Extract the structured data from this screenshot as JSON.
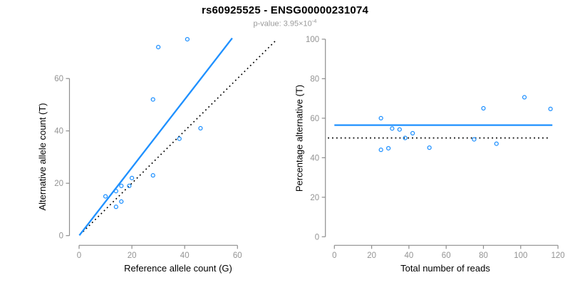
{
  "header": {
    "title": "rs60925525 - ENSG00000231074",
    "subtitle_prefix": "p-value: 3.95×10",
    "subtitle_exponent": "-4"
  },
  "colors": {
    "accent_blue": "#1E90FF",
    "axis_gray": "#8e8e8e",
    "tick_label_gray": "#939393",
    "axis_title_black": "#000000",
    "dotted_black": "#000000"
  },
  "chart_data": [
    {
      "type": "scatter",
      "panel": "left",
      "xlabel": "Reference allele count (G)",
      "ylabel": "Alternative allele count (T)",
      "x_ticks": [
        0,
        20,
        40,
        60
      ],
      "y_ticks": [
        0,
        20,
        40,
        60
      ],
      "xlim": [
        0,
        60
      ],
      "ylim": [
        0,
        60
      ],
      "grid": false,
      "points": [
        {
          "x": 10,
          "y": 15
        },
        {
          "x": 14,
          "y": 11
        },
        {
          "x": 16,
          "y": 13
        },
        {
          "x": 14,
          "y": 17
        },
        {
          "x": 16,
          "y": 19
        },
        {
          "x": 19,
          "y": 19
        },
        {
          "x": 20,
          "y": 22
        },
        {
          "x": 28,
          "y": 23
        },
        {
          "x": 38,
          "y": 37
        },
        {
          "x": 28,
          "y": 52
        },
        {
          "x": 46,
          "y": 41
        },
        {
          "x": 30,
          "y": 72
        },
        {
          "x": 41,
          "y": 75
        }
      ],
      "lines": [
        {
          "name": "identity-line",
          "style": "dotted",
          "color": "#000000",
          "from": [
            1.5,
            1.5
          ],
          "to": [
            74.3,
            74.3
          ]
        },
        {
          "name": "fit-line",
          "style": "solid",
          "color": "#1E90FF",
          "slope": 1.3,
          "from": [
            0.1,
            0.1
          ],
          "to": [
            58,
            75.4
          ]
        }
      ]
    },
    {
      "type": "scatter",
      "panel": "right",
      "xlabel": "Total number of reads",
      "ylabel": "Percentage alternative (T)",
      "x_ticks": [
        0,
        20,
        40,
        60,
        80,
        100,
        120
      ],
      "y_ticks": [
        0,
        20,
        40,
        60,
        80,
        100
      ],
      "xlim": [
        0,
        120
      ],
      "ylim": [
        0,
        100
      ],
      "grid": false,
      "points": [
        {
          "x": 25,
          "y": 60.0
        },
        {
          "x": 25,
          "y": 44.0
        },
        {
          "x": 29,
          "y": 44.8
        },
        {
          "x": 31,
          "y": 54.8
        },
        {
          "x": 35,
          "y": 54.3
        },
        {
          "x": 38,
          "y": 50.0
        },
        {
          "x": 42,
          "y": 52.4
        },
        {
          "x": 51,
          "y": 45.1
        },
        {
          "x": 75,
          "y": 49.3
        },
        {
          "x": 80,
          "y": 65.0
        },
        {
          "x": 87,
          "y": 47.1
        },
        {
          "x": 102,
          "y": 70.6
        },
        {
          "x": 116,
          "y": 64.7
        }
      ],
      "lines": [
        {
          "name": "fifty-percent-line",
          "style": "dotted",
          "color": "#000000",
          "from": [
            -3.5,
            50
          ],
          "to": [
            115,
            50
          ]
        },
        {
          "name": "mean-percentage-line",
          "style": "solid",
          "color": "#1E90FF",
          "value": 56.5,
          "from": [
            0,
            56.5
          ],
          "to": [
            117,
            56.5
          ]
        }
      ]
    }
  ]
}
